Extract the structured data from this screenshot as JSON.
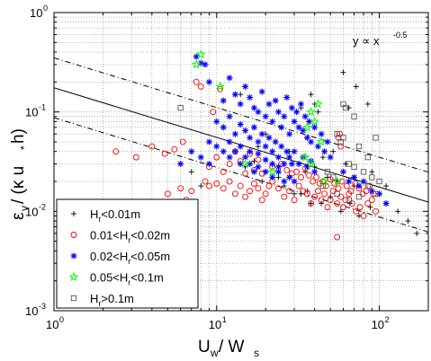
{
  "chart_data": {
    "type": "scatter",
    "x_scale": "log",
    "y_scale": "log",
    "xlim": [
      1,
      200
    ],
    "ylim": [
      0.001,
      1
    ],
    "grid": true,
    "legend_position": "bottom-left",
    "x_ticks": [
      {
        "value": 1,
        "base": "10",
        "exp": "0"
      },
      {
        "value": 10,
        "base": "10",
        "exp": "1"
      },
      {
        "value": 100,
        "base": "10",
        "exp": "2"
      }
    ],
    "y_ticks": [
      {
        "value": 0.001,
        "base": "10",
        "exp": "-3"
      },
      {
        "value": 0.01,
        "base": "10",
        "exp": "-2"
      },
      {
        "value": 0.1,
        "base": "10",
        "exp": "-1"
      },
      {
        "value": 1,
        "base": "10",
        "exp": "0"
      }
    ],
    "xlabel": {
      "main": "U",
      "sub": "w",
      "rest": " / W",
      "sub2": "s"
    },
    "ylabel": {
      "main": "ε",
      "sub": "v",
      "rest": " / (κ u",
      "sub2": "*",
      "rest2": " h)"
    },
    "annotation": {
      "text": "y ∝ x",
      "sup": "-0.5"
    },
    "lines": [
      {
        "name": "fit",
        "style": "solid",
        "points": [
          [
            1,
            0.175
          ],
          [
            200,
            0.0124
          ]
        ]
      },
      {
        "name": "upper",
        "style": "dashdot",
        "points": [
          [
            1,
            0.35
          ],
          [
            200,
            0.0248
          ]
        ]
      },
      {
        "name": "lower",
        "style": "dashdot",
        "points": [
          [
            1,
            0.0875
          ],
          [
            200,
            0.0062
          ]
        ]
      }
    ],
    "series": [
      {
        "name": "H",
        "sub": "r",
        "label_rest": "<0.01m",
        "label_pre": "",
        "marker": "plus",
        "color": "#000000",
        "points": [
          [
            60,
            0.25
          ],
          [
            72,
            0.18
          ],
          [
            38,
            0.15
          ],
          [
            33,
            0.11
          ],
          [
            40,
            0.12
          ],
          [
            42,
            0.1
          ],
          [
            65,
            0.11
          ],
          [
            85,
            0.12
          ],
          [
            12,
            0.05
          ],
          [
            18,
            0.045
          ],
          [
            22,
            0.03
          ],
          [
            28,
            0.04
          ],
          [
            35,
            0.025
          ],
          [
            40,
            0.028
          ],
          [
            48,
            0.022
          ],
          [
            55,
            0.02
          ],
          [
            62,
            0.03
          ],
          [
            70,
            0.018
          ],
          [
            80,
            0.02
          ],
          [
            90,
            0.025
          ],
          [
            100,
            0.015
          ],
          [
            110,
            0.018
          ],
          [
            130,
            0.01
          ],
          [
            150,
            0.008
          ],
          [
            170,
            0.006
          ],
          [
            7,
            0.025
          ],
          [
            8,
            0.018
          ],
          [
            15,
            0.028
          ],
          [
            17,
            0.032
          ],
          [
            19,
            0.02
          ],
          [
            24,
            0.022
          ],
          [
            26,
            0.018
          ],
          [
            30,
            0.015
          ],
          [
            36,
            0.016
          ],
          [
            44,
            0.012
          ],
          [
            50,
            0.014
          ],
          [
            58,
            0.01
          ],
          [
            66,
            0.012
          ],
          [
            75,
            0.009
          ],
          [
            88,
            0.011
          ],
          [
            20,
            0.06
          ],
          [
            25,
            0.07
          ],
          [
            30,
            0.08
          ],
          [
            14,
            0.15
          ],
          [
            45,
            0.035
          ],
          [
            52,
            0.04
          ],
          [
            33,
            0.015
          ],
          [
            38,
            0.012
          ]
        ]
      },
      {
        "name": "H",
        "sub": "r",
        "label_rest": "<0.02m",
        "label_pre": "0.01<",
        "marker": "circle",
        "color": "#ff0000",
        "points": [
          [
            2.4,
            0.04
          ],
          [
            3.2,
            0.035
          ],
          [
            4,
            0.045
          ],
          [
            4.8,
            0.038
          ],
          [
            5.5,
            0.042
          ],
          [
            6.2,
            0.05
          ],
          [
            7.5,
            0.2
          ],
          [
            8,
            0.18
          ],
          [
            10.5,
            0.17
          ],
          [
            9.5,
            0.1
          ],
          [
            5,
            0.015
          ],
          [
            6,
            0.017
          ],
          [
            6.5,
            0.013
          ],
          [
            7,
            0.016
          ],
          [
            8.5,
            0.02
          ],
          [
            9,
            0.018
          ],
          [
            10,
            0.019
          ],
          [
            11,
            0.017
          ],
          [
            12,
            0.02
          ],
          [
            13,
            0.015
          ],
          [
            14,
            0.018
          ],
          [
            15,
            0.014
          ],
          [
            16,
            0.016
          ],
          [
            17,
            0.019
          ],
          [
            18,
            0.017
          ],
          [
            19,
            0.013
          ],
          [
            20,
            0.015
          ],
          [
            21,
            0.018
          ],
          [
            22,
            0.02
          ],
          [
            24,
            0.017
          ],
          [
            26,
            0.014
          ],
          [
            28,
            0.016
          ],
          [
            30,
            0.013
          ],
          [
            32,
            0.018
          ],
          [
            34,
            0.016
          ],
          [
            36,
            0.015
          ],
          [
            38,
            0.012
          ],
          [
            40,
            0.014
          ],
          [
            42,
            0.016
          ],
          [
            44,
            0.013
          ],
          [
            46,
            0.015
          ],
          [
            48,
            0.011
          ],
          [
            50,
            0.013
          ],
          [
            52,
            0.016
          ],
          [
            55,
            0.012
          ],
          [
            58,
            0.014
          ],
          [
            60,
            0.011
          ],
          [
            62,
            0.013
          ],
          [
            65,
            0.015
          ],
          [
            68,
            0.012
          ],
          [
            72,
            0.01
          ],
          [
            76,
            0.011
          ],
          [
            80,
            0.009
          ],
          [
            85,
            0.012
          ],
          [
            90,
            0.013
          ],
          [
            95,
            0.01
          ],
          [
            55,
            0.0055
          ],
          [
            58,
            0.045
          ],
          [
            57,
            0.06
          ],
          [
            56,
            0.055
          ],
          [
            10,
            0.035
          ],
          [
            12,
            0.03
          ],
          [
            13,
            0.04
          ],
          [
            14,
            0.032
          ],
          [
            16,
            0.038
          ],
          [
            18,
            0.033
          ],
          [
            9,
            0.028
          ],
          [
            11,
            0.025
          ],
          [
            15,
            0.024
          ],
          [
            17,
            0.026
          ],
          [
            19,
            0.024
          ],
          [
            22,
            0.028
          ],
          [
            25,
            0.03
          ],
          [
            27,
            0.026
          ],
          [
            29,
            0.024
          ],
          [
            31,
            0.025
          ],
          [
            33,
            0.022
          ],
          [
            35,
            0.027
          ],
          [
            37,
            0.023
          ],
          [
            39,
            0.02
          ],
          [
            41,
            0.022
          ],
          [
            43,
            0.019
          ],
          [
            45,
            0.02
          ],
          [
            47,
            0.018
          ],
          [
            50,
            0.021
          ],
          [
            53,
            0.019
          ],
          [
            56,
            0.017
          ],
          [
            59,
            0.02
          ],
          [
            63,
            0.018
          ],
          [
            67,
            0.016
          ],
          [
            71,
            0.019
          ],
          [
            75,
            0.017
          ],
          [
            79,
            0.015
          ],
          [
            83,
            0.016
          ],
          [
            87,
            0.018
          ],
          [
            92,
            0.015
          ]
        ]
      },
      {
        "name": "H",
        "sub": "r",
        "label_rest": "<0.05m",
        "label_pre": "0.02<",
        "marker": "star",
        "color": "#0000ff",
        "points": [
          [
            7.5,
            0.36
          ],
          [
            8,
            0.31
          ],
          [
            8.5,
            0.3
          ],
          [
            9,
            0.2
          ],
          [
            11,
            0.13
          ],
          [
            12,
            0.22
          ],
          [
            13,
            0.15
          ],
          [
            14,
            0.12
          ],
          [
            15,
            0.18
          ],
          [
            16,
            0.14
          ],
          [
            17,
            0.11
          ],
          [
            18,
            0.1
          ],
          [
            19,
            0.16
          ],
          [
            20,
            0.09
          ],
          [
            21,
            0.12
          ],
          [
            22,
            0.08
          ],
          [
            23,
            0.13
          ],
          [
            24,
            0.1
          ],
          [
            25,
            0.07
          ],
          [
            26,
            0.09
          ],
          [
            27,
            0.14
          ],
          [
            28,
            0.06
          ],
          [
            29,
            0.11
          ],
          [
            30,
            0.08
          ],
          [
            31,
            0.1
          ],
          [
            32,
            0.07
          ],
          [
            33,
            0.12
          ],
          [
            34,
            0.065
          ],
          [
            35,
            0.09
          ],
          [
            36,
            0.055
          ],
          [
            37,
            0.08
          ],
          [
            38,
            0.05
          ],
          [
            40,
            0.07
          ],
          [
            42,
            0.045
          ],
          [
            44,
            0.06
          ],
          [
            46,
            0.04
          ],
          [
            48,
            0.05
          ],
          [
            50,
            0.035
          ],
          [
            10,
            0.08
          ],
          [
            11,
            0.07
          ],
          [
            12,
            0.09
          ],
          [
            13,
            0.06
          ],
          [
            14,
            0.075
          ],
          [
            15,
            0.065
          ],
          [
            16,
            0.055
          ],
          [
            17,
            0.07
          ],
          [
            18,
            0.05
          ],
          [
            19,
            0.06
          ],
          [
            20,
            0.045
          ],
          [
            21,
            0.055
          ],
          [
            22,
            0.04
          ],
          [
            23,
            0.05
          ],
          [
            24,
            0.035
          ],
          [
            25,
            0.045
          ],
          [
            26,
            0.03
          ],
          [
            27,
            0.04
          ],
          [
            28,
            0.035
          ],
          [
            29,
            0.03
          ],
          [
            30,
            0.04
          ],
          [
            32,
            0.03
          ],
          [
            34,
            0.035
          ],
          [
            36,
            0.028
          ],
          [
            38,
            0.032
          ],
          [
            40,
            0.025
          ],
          [
            9,
            0.05
          ],
          [
            10,
            0.045
          ],
          [
            11,
            0.04
          ],
          [
            12,
            0.035
          ],
          [
            13,
            0.04
          ],
          [
            14,
            0.03
          ],
          [
            15,
            0.035
          ],
          [
            16,
            0.03
          ],
          [
            17,
            0.025
          ],
          [
            18,
            0.028
          ],
          [
            20,
            0.025
          ],
          [
            22,
            0.022
          ],
          [
            24,
            0.025
          ],
          [
            26,
            0.02
          ],
          [
            28,
            0.022
          ],
          [
            30,
            0.02
          ],
          [
            7,
            0.04
          ],
          [
            8,
            0.035
          ],
          [
            9,
            0.03
          ],
          [
            6,
            0.03
          ],
          [
            60,
            0.025
          ],
          [
            65,
            0.02
          ],
          [
            70,
            0.022
          ],
          [
            75,
            0.018
          ],
          [
            80,
            0.02
          ],
          [
            90,
            0.016
          ],
          [
            100,
            0.015
          ],
          [
            110,
            0.012
          ],
          [
            12,
            0.05
          ],
          [
            14,
            0.045
          ],
          [
            16,
            0.04
          ],
          [
            18,
            0.038
          ],
          [
            20,
            0.033
          ],
          [
            22,
            0.03
          ],
          [
            24,
            0.028
          ]
        ]
      },
      {
        "name": "H",
        "sub": "r",
        "label_rest": "<0.1m",
        "label_pre": "0.05<",
        "marker": "pentagram",
        "color": "#00ff00",
        "points": [
          [
            8,
            0.38
          ],
          [
            7.5,
            0.3
          ],
          [
            10.5,
            0.18
          ],
          [
            38,
            0.1
          ],
          [
            40,
            0.08
          ],
          [
            42,
            0.12
          ],
          [
            36,
            0.07
          ],
          [
            44,
            0.05
          ],
          [
            35,
            0.035
          ],
          [
            38,
            0.03
          ],
          [
            22,
            0.025
          ],
          [
            46,
            0.02
          ],
          [
            55,
            0.02
          ],
          [
            15,
            0.03
          ]
        ]
      },
      {
        "name": "H",
        "sub": "r",
        "label_rest": ">0.1m",
        "label_pre": "",
        "marker": "square",
        "color": "#555555",
        "points": [
          [
            6,
            0.11
          ],
          [
            60,
            0.12
          ],
          [
            62,
            0.11
          ],
          [
            70,
            0.09
          ],
          [
            55,
            0.06
          ],
          [
            60,
            0.055
          ],
          [
            95,
            0.055
          ],
          [
            58,
            0.05
          ],
          [
            75,
            0.045
          ],
          [
            85,
            0.035
          ],
          [
            65,
            0.03
          ],
          [
            70,
            0.028
          ],
          [
            80,
            0.025
          ],
          [
            90,
            0.022
          ],
          [
            100,
            0.02
          ],
          [
            85,
            0.018
          ],
          [
            95,
            0.015
          ],
          [
            75,
            0.014
          ],
          [
            65,
            0.013
          ],
          [
            55,
            0.015
          ],
          [
            45,
            0.018
          ],
          [
            48,
            0.025
          ],
          [
            52,
            0.022
          ]
        ]
      }
    ]
  }
}
